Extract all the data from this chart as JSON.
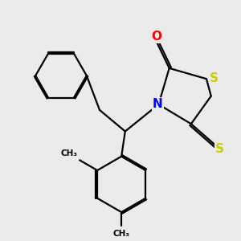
{
  "background_color": "#ebebeb",
  "atom_colors": {
    "O": "#ff0000",
    "N": "#0000ff",
    "S_yellow": "#cccc00",
    "C": "#000000"
  },
  "bond_color": "#000000",
  "bond_width": 1.6,
  "figsize": [
    3.0,
    3.0
  ],
  "dpi": 100,
  "xlim": [
    -2.5,
    2.5
  ],
  "ylim": [
    -2.8,
    2.2
  ]
}
